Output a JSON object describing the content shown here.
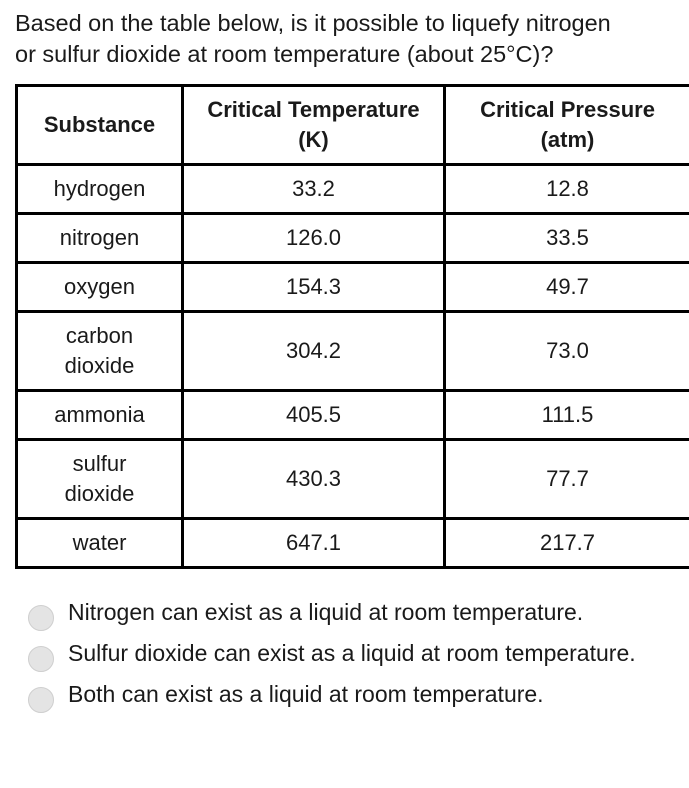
{
  "question": {
    "line1": "Based on the table below, is it possible to liquefy nitrogen",
    "line2": "or sulfur dioxide at room temperature (about 25°C)?"
  },
  "table": {
    "headers": [
      {
        "line1": "Substance",
        "line2": ""
      },
      {
        "line1": "Critical Temperature",
        "line2": "(K)"
      },
      {
        "line1": "Critical Pressure",
        "line2": "(atm)"
      }
    ],
    "rows": [
      {
        "substance_line1": "hydrogen",
        "substance_line2": "",
        "temperature": "33.2",
        "pressure": "12.8"
      },
      {
        "substance_line1": "nitrogen",
        "substance_line2": "",
        "temperature": "126.0",
        "pressure": "33.5"
      },
      {
        "substance_line1": "oxygen",
        "substance_line2": "",
        "temperature": "154.3",
        "pressure": "49.7"
      },
      {
        "substance_line1": "carbon",
        "substance_line2": "dioxide",
        "temperature": "304.2",
        "pressure": "73.0"
      },
      {
        "substance_line1": "ammonia",
        "substance_line2": "",
        "temperature": "405.5",
        "pressure": "111.5"
      },
      {
        "substance_line1": "sulfur",
        "substance_line2": "dioxide",
        "temperature": "430.3",
        "pressure": "77.7"
      },
      {
        "substance_line1": "water",
        "substance_line2": "",
        "temperature": "647.1",
        "pressure": "217.7"
      }
    ]
  },
  "options": [
    {
      "label": "Nitrogen can exist as a liquid at room temperature.",
      "selected": false
    },
    {
      "label": "Sulfur dioxide can exist as a liquid at room temperature.",
      "selected": false
    },
    {
      "label": "Both can exist as a liquid at room temperature.",
      "selected": false
    }
  ]
}
